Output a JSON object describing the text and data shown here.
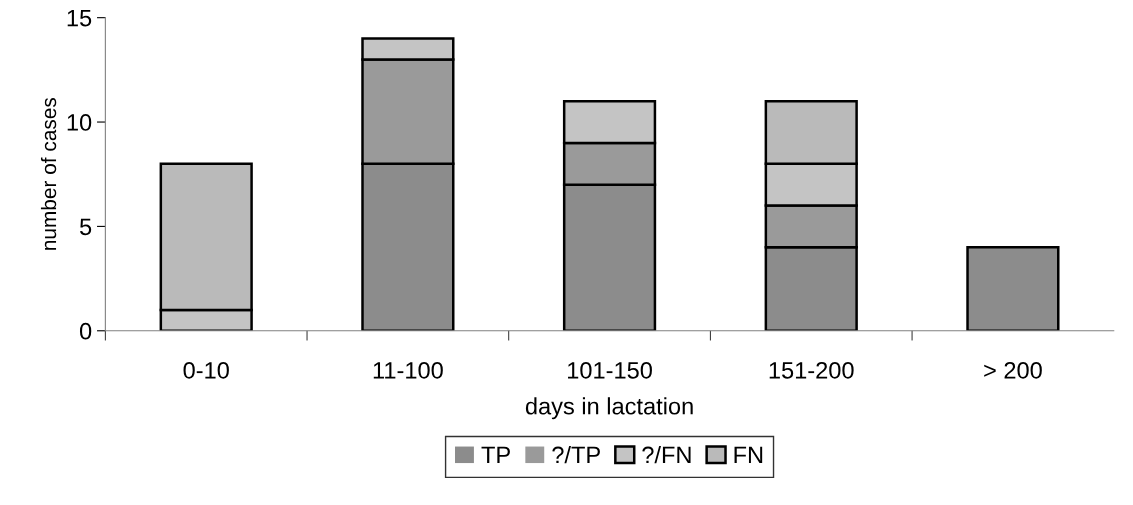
{
  "chart_data": {
    "type": "bar",
    "stacked": true,
    "xlabel": "days in lactation",
    "ylabel": "number of cases",
    "categories": [
      "0-10",
      "11-100",
      "101-150",
      "151-200",
      "> 200"
    ],
    "series": [
      {
        "name": "TP",
        "color": "#8c8c8c",
        "values": [
          0,
          8,
          7,
          4,
          4
        ]
      },
      {
        "name": "?/TP",
        "color": "#9a9a9a",
        "values": [
          0,
          5,
          2,
          2,
          0
        ]
      },
      {
        "name": "?/FN",
        "color": "#c4c4c4",
        "values": [
          1,
          1,
          2,
          2,
          0
        ]
      },
      {
        "name": "FN",
        "color": "#bababa",
        "values": [
          7,
          0,
          0,
          3,
          0
        ]
      }
    ],
    "ylim": [
      0,
      15
    ],
    "yticks": [
      0,
      5,
      10,
      15
    ],
    "grid": false,
    "legend": "bottom"
  }
}
